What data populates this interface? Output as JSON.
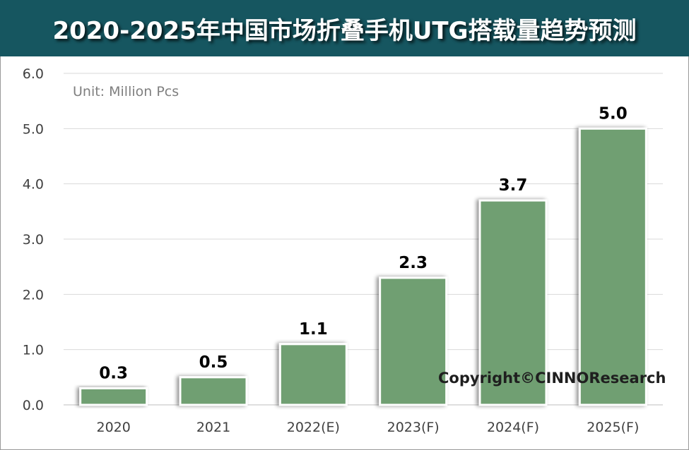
{
  "header": {
    "title": "2020-2025年中国市场折叠手机UTG搭载量趋势预测"
  },
  "annotations": {
    "unit": "Unit: Million Pcs",
    "copyright": "Copyright©CINNOResearch"
  },
  "colors": {
    "title_bg": "#165660",
    "bar_fill": "#6f9f72",
    "grid": "#d9d9d9"
  },
  "chart_data": {
    "type": "bar",
    "title": "2020-2025年中国市场折叠手机UTG搭载量趋势预测",
    "categories": [
      "2020",
      "2021",
      "2022(E)",
      "2023(F)",
      "2024(F)",
      "2025(F)"
    ],
    "values": [
      0.3,
      0.5,
      1.1,
      2.3,
      3.7,
      5.0
    ],
    "data_labels": [
      "0.3",
      "0.5",
      "1.1",
      "2.3",
      "3.7",
      "5.0"
    ],
    "ylim": [
      0,
      6
    ],
    "yticks": [
      0,
      1,
      2,
      3,
      4,
      5,
      6
    ],
    "ytick_labels": [
      "0.0",
      "1.0",
      "2.0",
      "3.0",
      "4.0",
      "5.0",
      "6.0"
    ],
    "xlabel": "",
    "ylabel": "",
    "grid": true,
    "legend": "none"
  }
}
